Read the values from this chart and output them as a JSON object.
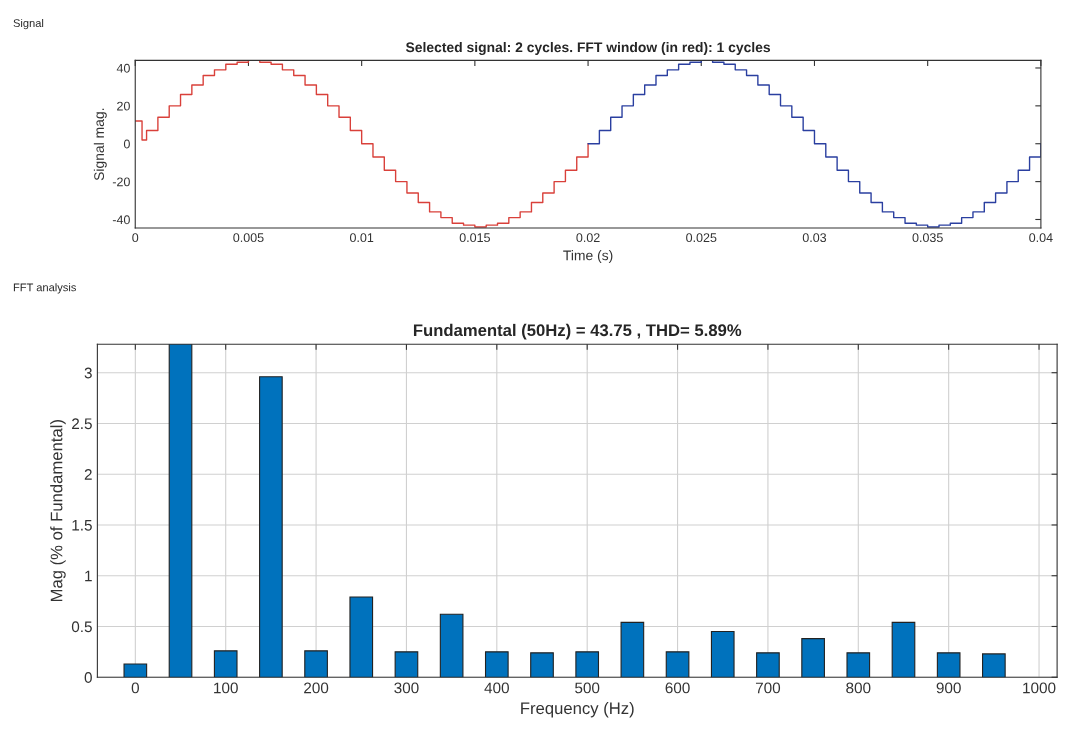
{
  "chart_data": [
    {
      "type": "step",
      "title": "Selected signal: 2 cycles. FFT window (in red): 1 cycles",
      "xlabel": "Time (s)",
      "ylabel": "Signal mag.",
      "annotations": [
        "Signal"
      ],
      "xlim": [
        0,
        0.04
      ],
      "ylim": [
        -44.5,
        44
      ],
      "xticks": [
        0,
        0.005,
        0.01,
        0.015,
        0.02,
        0.025,
        0.03,
        0.035,
        0.04
      ],
      "yticks": [
        -40,
        -20,
        0,
        20,
        40
      ],
      "grid": false,
      "series": [
        {
          "color": "#d9403a",
          "x": [
            0,
            0.0003,
            0.0005,
            0.001,
            0.0015,
            0.002,
            0.0025,
            0.003,
            0.0035,
            0.004,
            0.0045,
            0.005,
            0.0055,
            0.006,
            0.0065,
            0.007,
            0.0075,
            0.008,
            0.0085,
            0.009,
            0.0095,
            0.01,
            0.0105,
            0.011,
            0.0115,
            0.012,
            0.0125,
            0.013,
            0.0135,
            0.014,
            0.0145,
            0.015,
            0.0155,
            0.016,
            0.0165,
            0.017,
            0.0175,
            0.018,
            0.0185,
            0.019,
            0.0195,
            0.02
          ],
          "values": [
            12,
            2,
            7,
            14,
            20,
            26,
            31,
            36,
            39,
            42,
            43,
            44,
            43,
            42,
            39,
            36,
            31,
            26,
            20,
            14,
            7,
            0,
            -7,
            -14,
            -20,
            -26,
            -31,
            -36,
            -39,
            -42,
            -43,
            -44,
            -43,
            -42,
            -39,
            -36,
            -31,
            -26,
            -20,
            -14,
            -7,
            0
          ]
        },
        {
          "color": "#2a3fa0",
          "x": [
            0.02,
            0.0205,
            0.021,
            0.0215,
            0.022,
            0.0225,
            0.023,
            0.0235,
            0.024,
            0.0245,
            0.025,
            0.0255,
            0.026,
            0.0265,
            0.027,
            0.0275,
            0.028,
            0.0285,
            0.029,
            0.0295,
            0.03,
            0.0305,
            0.031,
            0.0315,
            0.032,
            0.0325,
            0.033,
            0.0335,
            0.034,
            0.0345,
            0.035,
            0.0355,
            0.036,
            0.0365,
            0.037,
            0.0375,
            0.038,
            0.0385,
            0.039,
            0.0395,
            0.04
          ],
          "values": [
            0,
            7,
            14,
            20,
            26,
            31,
            36,
            39,
            42,
            43,
            44,
            43,
            42,
            39,
            36,
            31,
            26,
            20,
            14,
            7,
            0,
            -7,
            -14,
            -20,
            -26,
            -31,
            -36,
            -39,
            -42,
            -43,
            -44,
            -43,
            -42,
            -39,
            -36,
            -31,
            -26,
            -20,
            -14,
            -7,
            0
          ]
        }
      ]
    },
    {
      "type": "bar",
      "title": "Fundamental (50Hz) = 43.75 , THD= 5.89%",
      "xlabel": "Frequency (Hz)",
      "ylabel": "Mag (% of Fundamental)",
      "annotations": [
        "FFT analysis"
      ],
      "xlim": [
        -42,
        1020
      ],
      "ylim": [
        0,
        3.28
      ],
      "xticks": [
        0,
        100,
        200,
        300,
        400,
        500,
        600,
        700,
        800,
        900,
        1000
      ],
      "yticks": [
        0,
        0.5,
        1,
        1.5,
        2,
        2.5,
        3
      ],
      "grid": true,
      "x": [
        0,
        50,
        100,
        150,
        200,
        250,
        300,
        350,
        400,
        450,
        500,
        550,
        600,
        650,
        700,
        750,
        800,
        850,
        900,
        950
      ],
      "series": [
        {
          "color": "#0072bd",
          "values": [
            0.13,
            3.28,
            0.26,
            2.96,
            0.26,
            0.79,
            0.25,
            0.62,
            0.25,
            0.24,
            0.25,
            0.54,
            0.25,
            0.45,
            0.24,
            0.38,
            0.24,
            0.54,
            0.24,
            0.23
          ]
        }
      ]
    }
  ]
}
